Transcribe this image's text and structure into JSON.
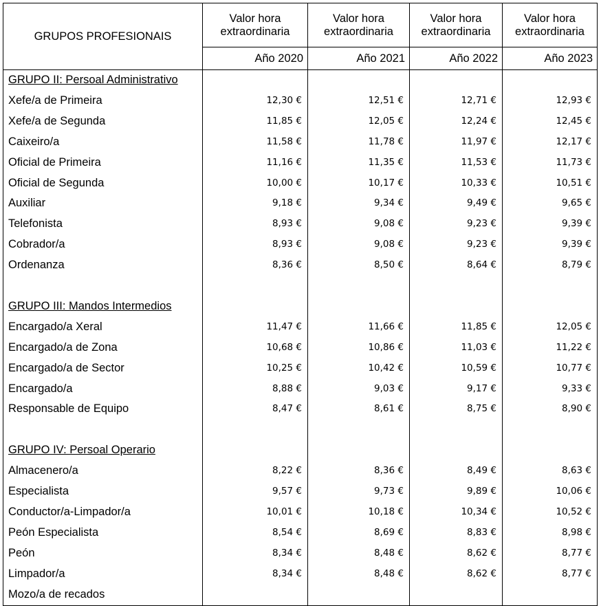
{
  "header": {
    "group_title": "GRUPOS PROFESIONAIS",
    "columns": [
      {
        "line1": "Valor hora",
        "line2": "extraordinaria",
        "year": "Año 2020"
      },
      {
        "line1": "Valor hora",
        "line2": "extraordinaria",
        "year": "Año 2021"
      },
      {
        "line1": "Valor hora",
        "line2": "extraordinaria",
        "year": "Año 2022"
      },
      {
        "line1": "Valor hora",
        "line2": "extraordinaria",
        "year": "Año 2023"
      }
    ]
  },
  "rows": [
    {
      "type": "group",
      "label": "GRUPO II: Persoal Administrativo"
    },
    {
      "type": "item",
      "label": "Xefe/a de Primeira",
      "values": [
        "12,30 €",
        "12,51 €",
        "12,71 €",
        "12,93 €"
      ]
    },
    {
      "type": "item",
      "label": "Xefe/a de Segunda",
      "values": [
        "11,85 €",
        "12,05 €",
        "12,24 €",
        "12,45 €"
      ]
    },
    {
      "type": "item",
      "label": "Caixeiro/a",
      "values": [
        "11,58 €",
        "11,78 €",
        "11,97 €",
        "12,17 €"
      ]
    },
    {
      "type": "item",
      "label": "Oficial de Primeira",
      "values": [
        "11,16 €",
        "11,35 €",
        "11,53 €",
        "11,73 €"
      ]
    },
    {
      "type": "item",
      "label": "Oficial de Segunda",
      "values": [
        "10,00 €",
        "10,17 €",
        "10,33 €",
        "10,51 €"
      ]
    },
    {
      "type": "item",
      "label": "Auxiliar",
      "values": [
        "9,18 €",
        "9,34 €",
        "9,49 €",
        "9,65 €"
      ]
    },
    {
      "type": "item",
      "label": "Telefonista",
      "values": [
        "8,93 €",
        "9,08 €",
        "9,23 €",
        "9,39 €"
      ]
    },
    {
      "type": "item",
      "label": "Cobrador/a",
      "values": [
        "8,93 €",
        "9,08 €",
        "9,23 €",
        "9,39 €"
      ]
    },
    {
      "type": "item",
      "label": "Ordenanza",
      "values": [
        "8,36 €",
        "8,50 €",
        "8,64 €",
        "8,79 €"
      ]
    },
    {
      "type": "blank"
    },
    {
      "type": "group",
      "label": "GRUPO III: Mandos Intermedios"
    },
    {
      "type": "item",
      "label": "Encargado/a Xeral",
      "values": [
        "11,47 €",
        "11,66 €",
        "11,85 €",
        "12,05 €"
      ]
    },
    {
      "type": "item",
      "label": "Encargado/a de Zona",
      "values": [
        "10,68 €",
        "10,86 €",
        "11,03 €",
        "11,22 €"
      ]
    },
    {
      "type": "item",
      "label": "Encargado/a de Sector",
      "values": [
        "10,25 €",
        "10,42 €",
        "10,59 €",
        "10,77 €"
      ]
    },
    {
      "type": "item",
      "label": "Encargado/a",
      "values": [
        "8,88 €",
        "9,03 €",
        "9,17 €",
        "9,33 €"
      ]
    },
    {
      "type": "item",
      "label": "Responsable de Equipo",
      "values": [
        "8,47 €",
        "8,61 €",
        "8,75 €",
        "8,90 €"
      ]
    },
    {
      "type": "blank"
    },
    {
      "type": "group",
      "label": "GRUPO IV: Persoal Operario"
    },
    {
      "type": "item",
      "label": "Almacenero/a",
      "values": [
        "8,22 €",
        "8,36 €",
        "8,49 €",
        "8,63 €"
      ]
    },
    {
      "type": "item",
      "label": "Especialista",
      "values": [
        "9,57 €",
        "9,73 €",
        "9,89 €",
        "10,06 €"
      ]
    },
    {
      "type": "item",
      "label": "Conductor/a-Limpador/a",
      "values": [
        "10,01 €",
        "10,18 €",
        "10,34 €",
        "10,52 €"
      ]
    },
    {
      "type": "item",
      "label": "Peón Especialista",
      "values": [
        "8,54 €",
        "8,69 €",
        "8,83 €",
        "8,98 €"
      ]
    },
    {
      "type": "item",
      "label": "Peón",
      "values": [
        "8,34 €",
        "8,48 €",
        "8,62 €",
        "8,77 €"
      ]
    },
    {
      "type": "item",
      "label": "Limpador/a",
      "values": [
        "8,34 €",
        "8,48 €",
        "8,62 €",
        "8,77 €"
      ]
    },
    {
      "type": "item",
      "label": "Mozo/a de recados",
      "values": [
        "",
        "",
        "",
        ""
      ]
    }
  ]
}
